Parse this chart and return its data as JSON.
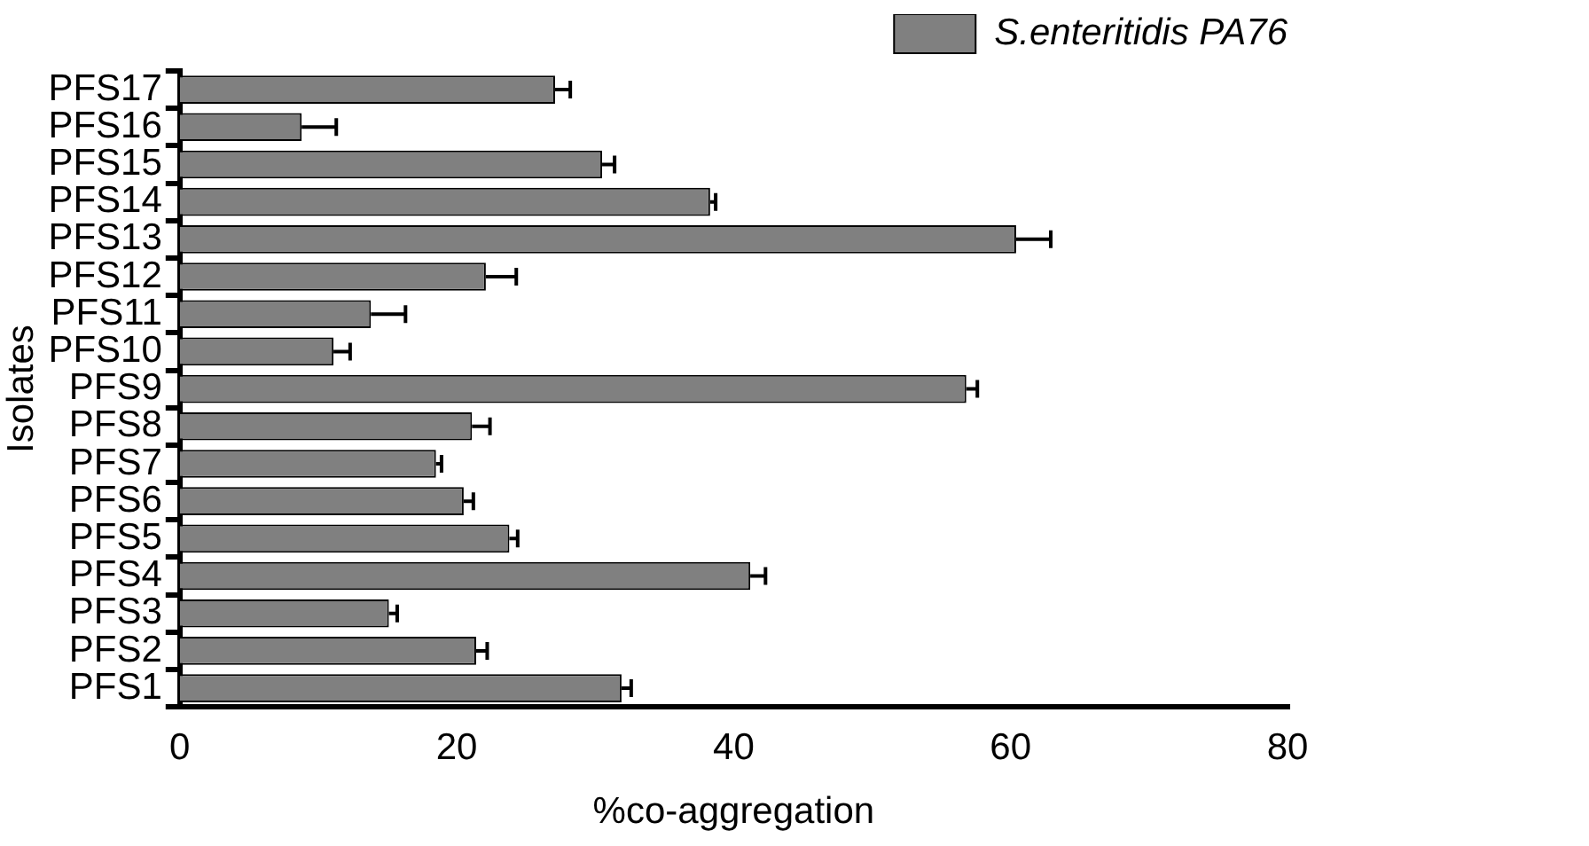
{
  "chart_data": {
    "type": "bar",
    "orientation": "horizontal",
    "xlabel": "%co-aggregation",
    "ylabel": "Isolates",
    "categories": [
      "PFS17",
      "PFS16",
      "PFS15",
      "PFS14",
      "PFS13",
      "PFS12",
      "PFS11",
      "PFS10",
      "PFS9",
      "PFS8",
      "PFS7",
      "PFS6",
      "PFS5",
      "PFS4",
      "PFS3",
      "PFS2",
      "PFS1"
    ],
    "series": [
      {
        "name": "S.enteritidis PA76",
        "color": "#808080",
        "values": [
          27.1,
          8.8,
          30.5,
          38.3,
          60.4,
          22.1,
          13.8,
          11.1,
          56.8,
          21.1,
          18.5,
          20.5,
          23.8,
          41.2,
          15.1,
          21.4,
          31.9
        ],
        "errors": [
          [
            27.1,
            28.2
          ],
          [
            8.8,
            11.3
          ],
          [
            30.5,
            31.4
          ],
          [
            38.3,
            38.7
          ],
          [
            60.4,
            62.9
          ],
          [
            22.1,
            24.3
          ],
          [
            13.8,
            16.3
          ],
          [
            11.1,
            12.3
          ],
          [
            56.8,
            57.6
          ],
          [
            21.1,
            22.4
          ],
          [
            18.5,
            18.9
          ],
          [
            20.5,
            21.2
          ],
          [
            23.8,
            24.4
          ],
          [
            41.2,
            42.3
          ],
          [
            15.1,
            15.7
          ],
          [
            21.4,
            22.2
          ],
          [
            31.9,
            32.6
          ]
        ]
      }
    ],
    "xlim": [
      0,
      80
    ],
    "xticks": [
      0,
      20,
      40,
      60,
      80
    ],
    "grid": false,
    "legend": "top right"
  }
}
